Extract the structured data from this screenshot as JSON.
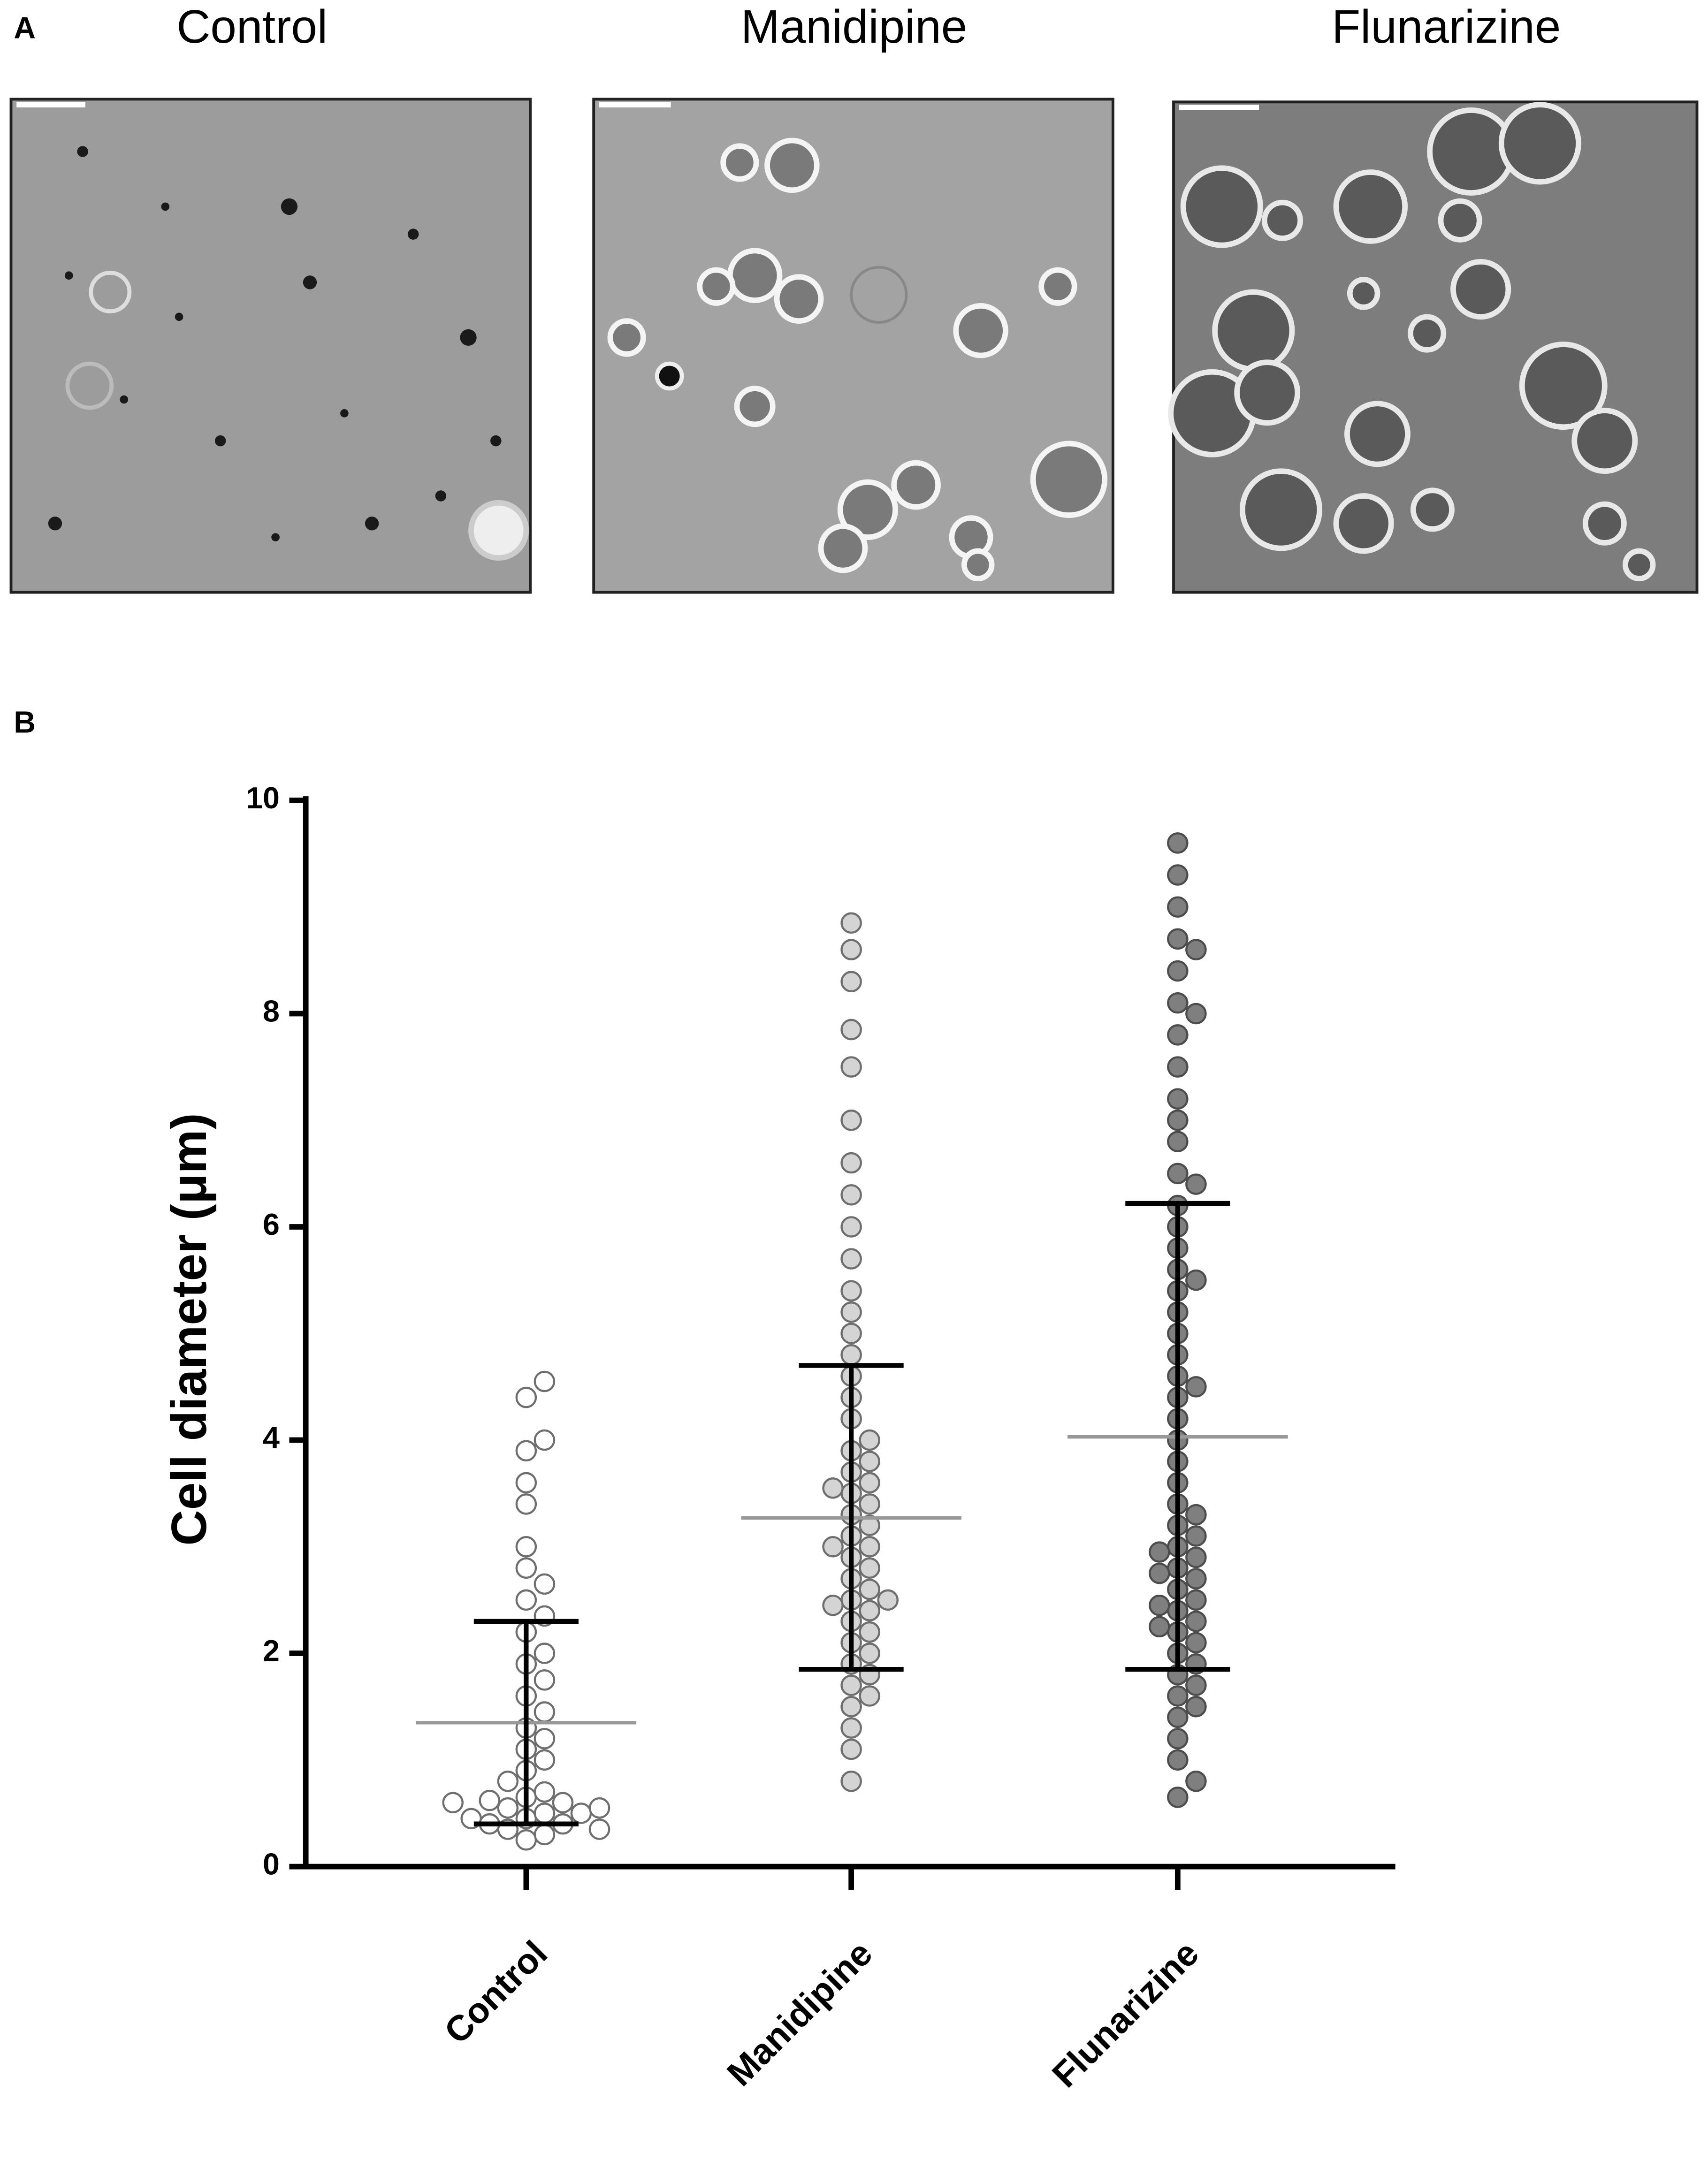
{
  "panel_labels": [
    "A",
    "B"
  ],
  "image_titles": [
    "Control",
    "Manidipine",
    "Flunarizine"
  ],
  "chart_data": {
    "type": "dotplot",
    "ylabel": "Cell diameter (μm)",
    "ylim": [
      0,
      10
    ],
    "yticks": [
      0,
      2,
      4,
      6,
      8,
      10
    ],
    "categories": [
      "Control",
      "Manidipine",
      "Flunarizine"
    ],
    "colors": [
      "#ffffff",
      "#d4d4d4",
      "#7f7f7f"
    ],
    "values": [
      [
        0.25,
        0.3,
        0.35,
        0.4,
        0.45,
        0.5,
        0.55,
        0.6,
        0.62,
        0.65,
        0.7,
        0.5,
        0.45,
        0.55,
        0.6,
        0.4,
        0.35,
        0.8,
        0.9,
        1.0,
        1.1,
        1.2,
        1.3,
        1.45,
        1.6,
        1.75,
        1.9,
        2.0,
        2.2,
        2.35,
        2.5,
        2.65,
        2.8,
        3.0,
        3.4,
        3.6,
        3.9,
        4.0,
        4.4,
        4.55
      ],
      [
        0.8,
        1.1,
        1.3,
        1.5,
        1.6,
        1.7,
        1.8,
        1.9,
        2.0,
        2.1,
        2.2,
        2.3,
        2.4,
        2.5,
        2.5,
        2.6,
        2.7,
        2.8,
        2.9,
        3.0,
        3.0,
        3.1,
        3.2,
        3.3,
        3.4,
        3.5,
        3.6,
        3.7,
        3.8,
        3.9,
        4.0,
        4.2,
        4.4,
        4.6,
        4.8,
        5.0,
        5.2,
        5.4,
        5.7,
        6.0,
        6.3,
        6.6,
        7.0,
        7.5,
        7.85,
        8.3,
        8.6,
        8.85,
        2.45,
        3.55
      ],
      [
        0.65,
        0.8,
        1.0,
        1.2,
        1.4,
        1.6,
        1.8,
        1.9,
        2.0,
        2.1,
        2.2,
        2.3,
        2.4,
        2.5,
        2.6,
        2.7,
        2.8,
        2.9,
        3.0,
        3.1,
        3.2,
        3.4,
        3.6,
        3.8,
        4.0,
        4.2,
        4.4,
        4.6,
        4.8,
        5.0,
        5.2,
        5.4,
        5.6,
        5.8,
        6.0,
        6.2,
        6.5,
        6.8,
        7.2,
        7.5,
        7.8,
        8.1,
        8.4,
        8.7,
        9.0,
        9.3,
        9.6,
        1.5,
        1.7,
        2.25,
        2.45,
        2.75,
        2.95,
        3.3,
        4.5,
        5.5,
        6.4,
        7.0,
        8.0,
        8.6
      ]
    ],
    "means": [
      1.35,
      3.27,
      4.03
    ],
    "sd_low": [
      0.4,
      1.85,
      1.85
    ],
    "sd_high": [
      2.3,
      4.7,
      6.22
    ]
  }
}
